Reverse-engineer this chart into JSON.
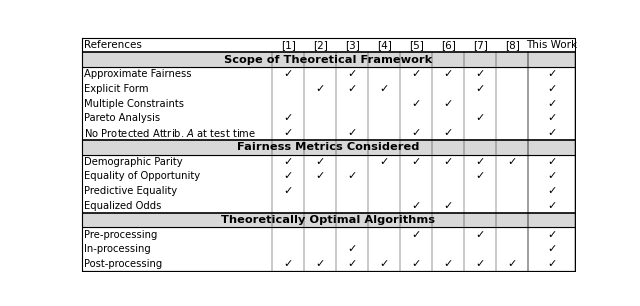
{
  "col_headers": [
    "References",
    "[1]",
    "[2]",
    "[3]",
    "[4]",
    "[5]",
    "[6]",
    "[7]",
    "[8]",
    "This Work"
  ],
  "sections": [
    {
      "title": "Scope of Theoretical Framework",
      "rows": [
        {
          "label": "Approximate Fairness",
          "checks": [
            0,
            1,
            0,
            1,
            0,
            1,
            1,
            1,
            0,
            1
          ]
        },
        {
          "label": "Explicit Form",
          "checks": [
            0,
            0,
            1,
            1,
            1,
            0,
            0,
            1,
            0,
            1
          ]
        },
        {
          "label": "Multiple Constraints",
          "checks": [
            0,
            0,
            0,
            0,
            0,
            1,
            1,
            0,
            0,
            1
          ]
        },
        {
          "label": "Pareto Analysis",
          "checks": [
            0,
            1,
            0,
            0,
            0,
            0,
            0,
            1,
            0,
            1
          ]
        },
        {
          "label": "No Protected Attrib. $A$ at test time",
          "checks": [
            0,
            1,
            0,
            1,
            0,
            1,
            1,
            0,
            0,
            1
          ]
        }
      ]
    },
    {
      "title": "Fairness Metrics Considered",
      "rows": [
        {
          "label": "Demographic Parity",
          "checks": [
            0,
            1,
            1,
            0,
            1,
            1,
            1,
            1,
            1,
            1
          ]
        },
        {
          "label": "Equality of Opportunity",
          "checks": [
            0,
            1,
            1,
            1,
            0,
            0,
            0,
            1,
            0,
            1
          ]
        },
        {
          "label": "Predictive Equality",
          "checks": [
            0,
            1,
            0,
            0,
            0,
            0,
            0,
            0,
            0,
            1
          ]
        },
        {
          "label": "Equalized Odds",
          "checks": [
            0,
            0,
            0,
            0,
            0,
            1,
            1,
            0,
            0,
            1
          ]
        }
      ]
    },
    {
      "title": "Theoretically Optimal Algorithms",
      "rows": [
        {
          "label": "Pre-processing",
          "checks": [
            0,
            0,
            0,
            0,
            0,
            1,
            0,
            1,
            0,
            1
          ]
        },
        {
          "label": "In-processing",
          "checks": [
            0,
            0,
            0,
            1,
            0,
            0,
            0,
            0,
            0,
            1
          ]
        },
        {
          "label": "Post-processing",
          "checks": [
            0,
            1,
            1,
            1,
            1,
            1,
            1,
            1,
            1,
            1
          ]
        }
      ]
    }
  ],
  "check_char": "✓",
  "bg_color": "#ffffff",
  "text_color": "#000000",
  "check_color": "#000000",
  "section_bg_color": "#d8d8d8"
}
